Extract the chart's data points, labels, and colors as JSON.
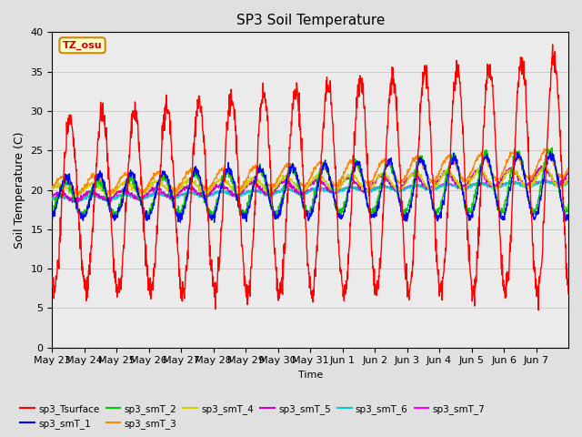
{
  "title": "SP3 Soil Temperature",
  "ylabel": "Soil Temperature (C)",
  "xlabel": "Time",
  "ylim": [
    0,
    40
  ],
  "annotation_text": "TZ_osu",
  "annotation_color": "#cc0000",
  "annotation_bg": "#ffffcc",
  "annotation_border": "#cc8800",
  "series_colors": {
    "sp3_Tsurface": "#ff0000",
    "sp3_smT_1": "#0000ff",
    "sp3_smT_2": "#00cc00",
    "sp3_smT_3": "#ff8800",
    "sp3_smT_4": "#cccc00",
    "sp3_smT_5": "#cc00cc",
    "sp3_smT_6": "#00cccc",
    "sp3_smT_7": "#ff00ff"
  },
  "xtick_labels": [
    "May 23",
    "May 24",
    "May 25",
    "May 26",
    "May 27",
    "May 28",
    "May 29",
    "May 30",
    "May 31",
    "Jun 1",
    "Jun 2",
    "Jun 3",
    "Jun 4",
    "Jun 5",
    "Jun 6",
    "Jun 7"
  ],
  "grid_color": "#cccccc",
  "bg_color": "#e0e0e0",
  "plot_bg_color": "#ebebeb",
  "figsize": [
    6.4,
    4.8
  ],
  "dpi": 100
}
